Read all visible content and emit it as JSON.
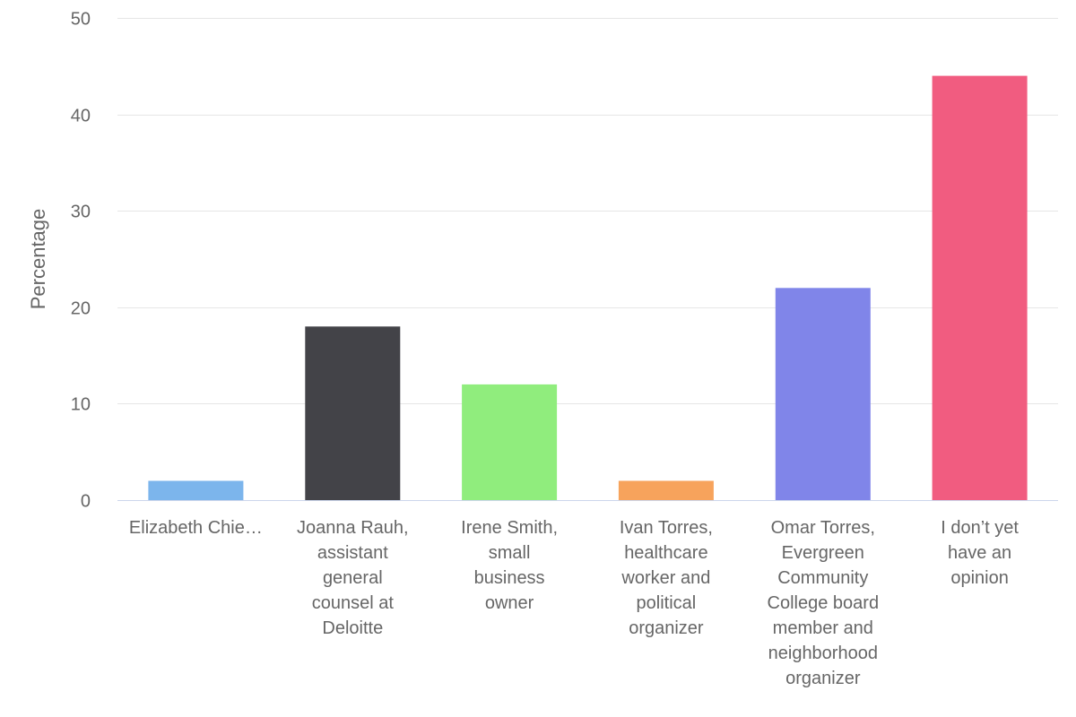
{
  "chart_data": {
    "type": "bar",
    "title": "",
    "xlabel": "",
    "ylabel": "Percentage",
    "ylim": [
      0,
      50
    ],
    "yticks": [
      0,
      10,
      20,
      30,
      40,
      50
    ],
    "grid": true,
    "legend": "none",
    "categories": [
      "Elizabeth Chie…",
      "Joanna Rauh, assistant general counsel at Deloitte",
      "Irene Smith, small business owner",
      "Ivan Torres, healthcare worker and political organizer",
      "Omar Torres, Evergreen Community College board member and neighborhood organizer",
      "I don’t yet have an opinion"
    ],
    "category_lines": [
      [
        "Elizabeth Chie…"
      ],
      [
        "Joanna Rauh,",
        "assistant",
        "general",
        "counsel at",
        "Deloitte"
      ],
      [
        "Irene Smith,",
        "small",
        "business",
        "owner"
      ],
      [
        "Ivan Torres,",
        "healthcare",
        "worker and",
        "political",
        "organizer"
      ],
      [
        "Omar Torres,",
        "Evergreen",
        "Community",
        "College board",
        "member and",
        "neighborhood",
        "organizer"
      ],
      [
        "I don’t yet",
        "have an",
        "opinion"
      ]
    ],
    "values": [
      2,
      18,
      12,
      2,
      22,
      44
    ],
    "colors": [
      "#7cb5ec",
      "#434348",
      "#90ed7d",
      "#f7a35c",
      "#8085e9",
      "#f15c80"
    ]
  }
}
